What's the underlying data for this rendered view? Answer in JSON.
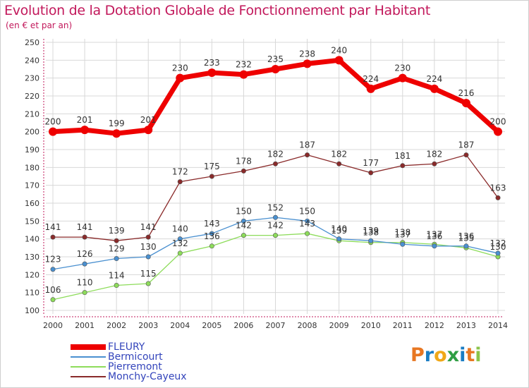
{
  "title": "Evolution de la Dotation Globale de Fonctionnement par Habitant",
  "subtitle": "(en € et par an)",
  "brand": "Proxiti",
  "colors": {
    "title": "#c2185b",
    "axis": "#c2185b",
    "grid": "#d8d8d8",
    "brand_letters": [
      "#e87722",
      "#1a7dc4",
      "#f0a818",
      "#2f9e44",
      "#1a7dc4",
      "#e87722",
      "#8bc34a"
    ]
  },
  "chart_data": {
    "type": "line",
    "title": "Evolution de la Dotation Globale de Fonctionnement par Habitant",
    "subtitle": "(en € et par an)",
    "x": [
      "2000",
      "2001",
      "2002",
      "2003",
      "2004",
      "2005",
      "2006",
      "2007",
      "2008",
      "2009",
      "2010",
      "2011",
      "2012",
      "2013",
      "2014"
    ],
    "ylim": [
      100,
      250
    ],
    "yticks": [
      100,
      110,
      120,
      130,
      140,
      150,
      160,
      170,
      180,
      190,
      200,
      210,
      220,
      230,
      240,
      250
    ],
    "grid": true,
    "legend_position": "bottom-left",
    "series": [
      {
        "name": "FLEURY",
        "color": "#ee0000",
        "values": [
          200,
          201,
          199,
          201,
          230,
          233,
          232,
          235,
          238,
          240,
          224,
          230,
          224,
          216,
          200
        ]
      },
      {
        "name": "Bermicourt",
        "color": "#4a90d0",
        "values": [
          123,
          126,
          129,
          130,
          140,
          143,
          150,
          152,
          150,
          140,
          139,
          137,
          136,
          136,
          132
        ]
      },
      {
        "name": "Pierremont",
        "color": "#8ddc5a",
        "values": [
          106,
          110,
          114,
          115,
          132,
          136,
          142,
          142,
          143,
          139,
          138,
          138,
          137,
          135,
          130
        ]
      },
      {
        "name": "Monchy-Cayeux",
        "color": "#8a2a2a",
        "values": [
          141,
          141,
          139,
          141,
          172,
          175,
          178,
          182,
          187,
          182,
          177,
          181,
          182,
          187,
          163
        ]
      }
    ]
  }
}
